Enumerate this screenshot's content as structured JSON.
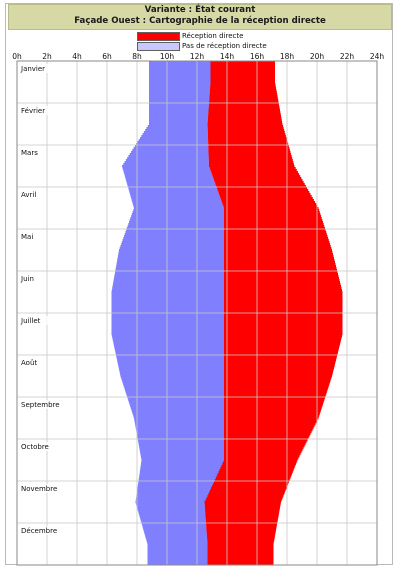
{
  "chart_data": {
    "type": "area",
    "title": "Variante : État courant",
    "subtitle": "Façade Ouest : Cartographie de la réception directe",
    "x_ticks": [
      "0h",
      "2h",
      "4h",
      "6h",
      "8h",
      "10h",
      "12h",
      "14h",
      "16h",
      "18h",
      "20h",
      "22h",
      "24h"
    ],
    "xlim": [
      0,
      24
    ],
    "categories": [
      "Janvier",
      "Février",
      "Mars",
      "Avril",
      "Mai",
      "Juin",
      "Juillet",
      "Août",
      "Septembre",
      "Octobre",
      "Novembre",
      "Décembre"
    ],
    "legend": [
      {
        "label": "Réception directe",
        "color": "#ff0000"
      },
      {
        "label": "Pas de réception directe",
        "color": "#8080ff"
      }
    ],
    "colors": {
      "reception": "#ff0000",
      "no_reception": "#8080ff",
      "grid": "#c8c8c8",
      "title_bg": "#d6d9a6"
    },
    "grid": true,
    "legend_position": "top-center",
    "series": [
      {
        "name": "Pas de réception directe",
        "values_start_hours": [
          8.8,
          8.8,
          7.0,
          7.8,
          6.8,
          6.3,
          6.3,
          6.9,
          7.8,
          8.3,
          7.9,
          8.7
        ],
        "values_end_hours": [
          12.9,
          12.7,
          12.8,
          13.8,
          13.8,
          13.8,
          13.8,
          13.8,
          13.8,
          13.8,
          12.5,
          12.7
        ]
      },
      {
        "name": "Réception directe",
        "values_start_hours": [
          12.9,
          12.7,
          12.8,
          13.8,
          13.8,
          13.8,
          13.8,
          13.8,
          13.8,
          13.8,
          12.5,
          12.7
        ],
        "values_end_hours": [
          17.2,
          17.7,
          18.5,
          20.1,
          21.0,
          21.7,
          21.7,
          21.0,
          20.1,
          18.7,
          17.6,
          17.1
        ]
      }
    ]
  }
}
